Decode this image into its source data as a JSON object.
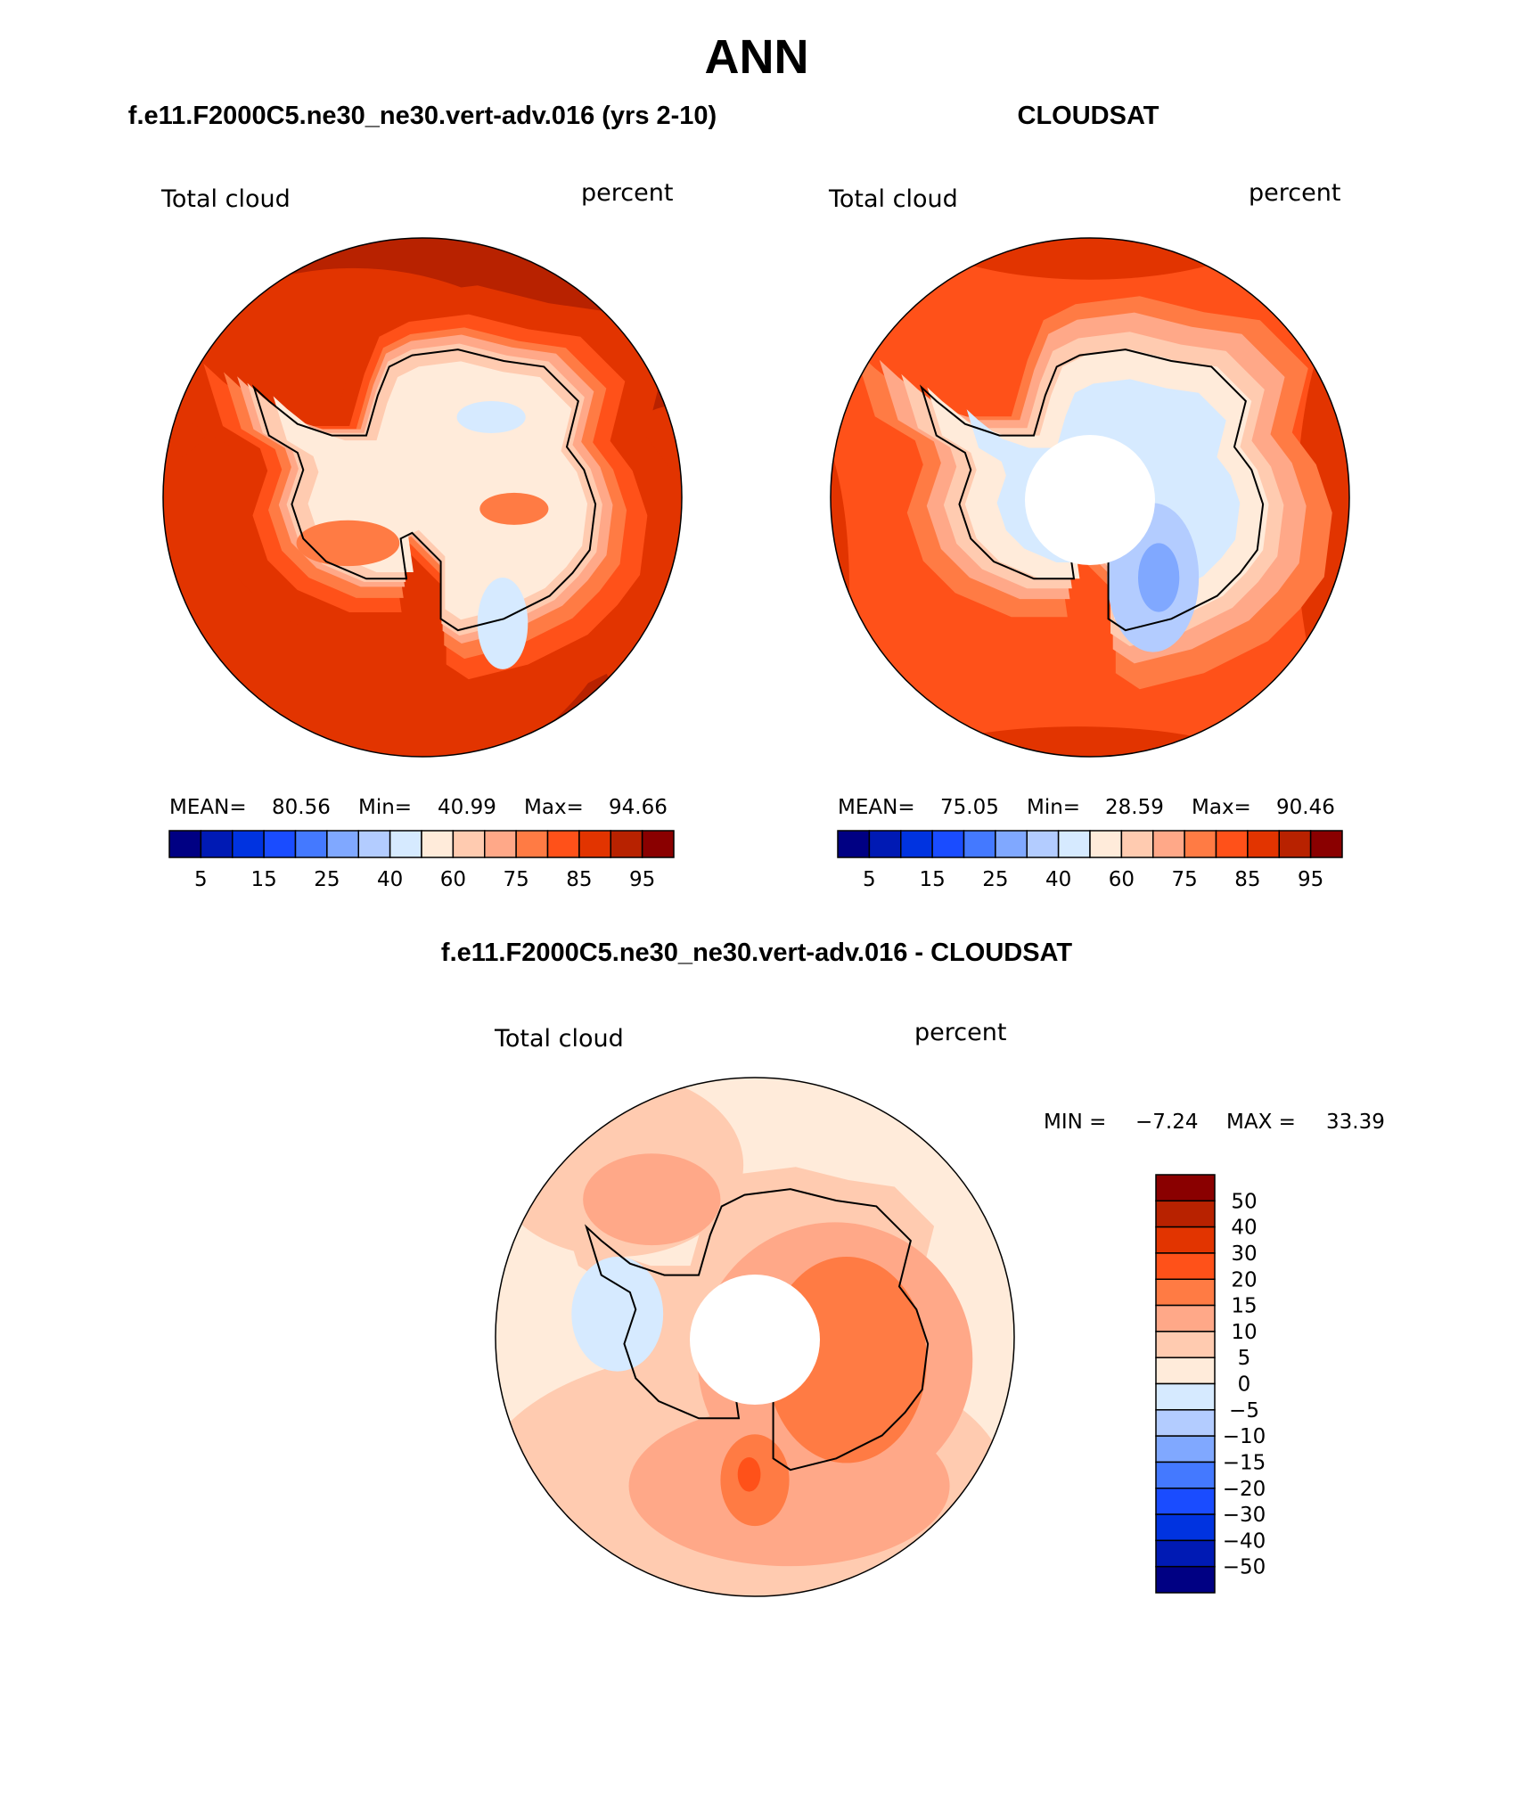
{
  "chart_data": [
    {
      "type": "heatmap",
      "projection": "south polar stereographic",
      "title": "ANN",
      "subtitle": "f.e11.F2000C5.ne30_ne30.vert-adv.016 (yrs 2-10)",
      "left_label": "Total cloud",
      "right_label": "percent",
      "stats": {
        "mean_label": "MEAN=",
        "mean": "80.56",
        "min_label": "Min=",
        "min": "40.99",
        "max_label": "Max=",
        "max": "94.66"
      },
      "colorbar_ticks": [
        "5",
        "15",
        "25",
        "40",
        "60",
        "75",
        "85",
        "95"
      ],
      "colors": [
        "#000083",
        "#001AB4",
        "#0033E0",
        "#1A4CFF",
        "#4479FF",
        "#80A8FF",
        "#B3CCFF",
        "#D6EAFF",
        "#FFEBDA",
        "#FFCBB0",
        "#FFA888",
        "#FF7B44",
        "#FF5119",
        "#E23400",
        "#B82200",
        "#8A0000"
      ]
    },
    {
      "type": "heatmap",
      "projection": "south polar stereographic",
      "subtitle": "CLOUDSAT",
      "left_label": "Total cloud",
      "right_label": "percent",
      "stats": {
        "mean_label": "MEAN=",
        "mean": "75.05",
        "min_label": "Min=",
        "min": "28.59",
        "max_label": "Max=",
        "max": "90.46"
      },
      "colorbar_ticks": [
        "5",
        "15",
        "25",
        "40",
        "60",
        "75",
        "85",
        "95"
      ],
      "colors": [
        "#000083",
        "#001AB4",
        "#0033E0",
        "#1A4CFF",
        "#4479FF",
        "#80A8FF",
        "#B3CCFF",
        "#D6EAFF",
        "#FFEBDA",
        "#FFCBB0",
        "#FFA888",
        "#FF7B44",
        "#FF5119",
        "#E23400",
        "#B82200",
        "#8A0000"
      ]
    },
    {
      "type": "heatmap",
      "projection": "south polar stereographic",
      "subtitle": "f.e11.F2000C5.ne30_ne30.vert-adv.016 - CLOUDSAT",
      "left_label": "Total cloud",
      "right_label": "percent",
      "stats": {
        "min_label": "MIN =",
        "min": "−7.24",
        "max_label": "MAX =",
        "max": "33.39"
      },
      "colorbar_ticks": [
        "50",
        "40",
        "30",
        "20",
        "15",
        "10",
        "5",
        "0",
        "−5",
        "−10",
        "−15",
        "−20",
        "−30",
        "−40",
        "−50"
      ],
      "colors": [
        "#8A0000",
        "#B82200",
        "#E23400",
        "#FF5119",
        "#FF7B44",
        "#FFA888",
        "#FFCBB0",
        "#FFEBDA",
        "#D6EAFF",
        "#B3CCFF",
        "#80A8FF",
        "#4479FF",
        "#1A4CFF",
        "#0033E0",
        "#001AB4",
        "#000083"
      ]
    }
  ]
}
